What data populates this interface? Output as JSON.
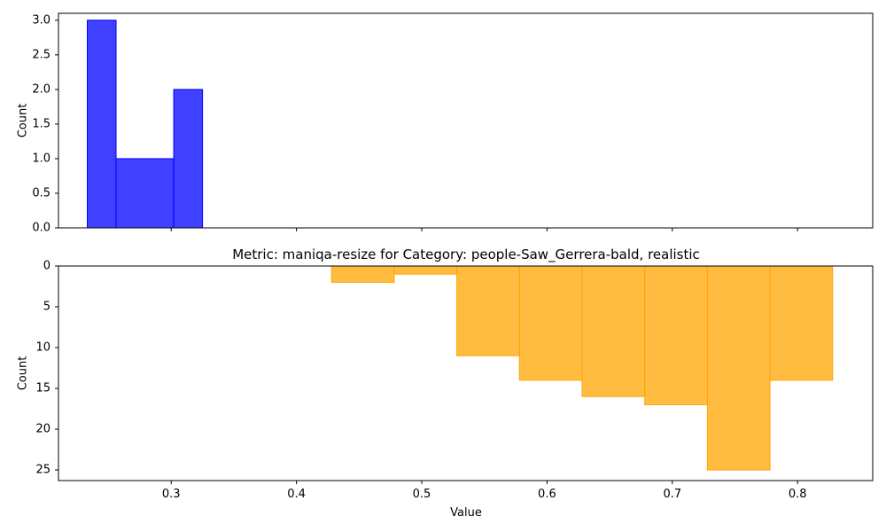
{
  "chart_data": [
    {
      "type": "histogram",
      "title": "",
      "xlabel": "",
      "ylabel": "Count",
      "ylim": [
        0,
        3.1
      ],
      "yticks": [
        "0.0",
        "0.5",
        "1.0",
        "1.5",
        "2.0",
        "2.5",
        "3.0"
      ],
      "series": [
        {
          "color": "#0000ff",
          "bins": [
            {
              "x0": 0.233,
              "x1": 0.256,
              "count": 3
            },
            {
              "x0": 0.256,
              "x1": 0.302,
              "count": 1
            },
            {
              "x0": 0.302,
              "x1": 0.325,
              "count": 2
            }
          ]
        }
      ],
      "grid": false
    },
    {
      "type": "histogram",
      "title": "Metric: maniqa-resize for Category: people-Saw_Gerrera-bald, realistic",
      "xlabel": "Value",
      "ylabel": "Count",
      "y_inverted": true,
      "ylim": [
        0,
        26.3
      ],
      "xlim": [
        0.21,
        0.86
      ],
      "xticks": [
        "0.3",
        "0.4",
        "0.5",
        "0.6",
        "0.7",
        "0.8"
      ],
      "yticks": [
        "0",
        "5",
        "10",
        "15",
        "20",
        "25"
      ],
      "series": [
        {
          "color": "#ffa500",
          "bins": [
            {
              "x0": 0.428,
              "x1": 0.478,
              "count": 2
            },
            {
              "x0": 0.478,
              "x1": 0.528,
              "count": 1
            },
            {
              "x0": 0.528,
              "x1": 0.578,
              "count": 11
            },
            {
              "x0": 0.578,
              "x1": 0.628,
              "count": 14
            },
            {
              "x0": 0.628,
              "x1": 0.678,
              "count": 16
            },
            {
              "x0": 0.678,
              "x1": 0.728,
              "count": 17
            },
            {
              "x0": 0.728,
              "x1": 0.778,
              "count": 25
            },
            {
              "x0": 0.778,
              "x1": 0.828,
              "count": 14
            }
          ]
        }
      ],
      "grid": false
    }
  ]
}
